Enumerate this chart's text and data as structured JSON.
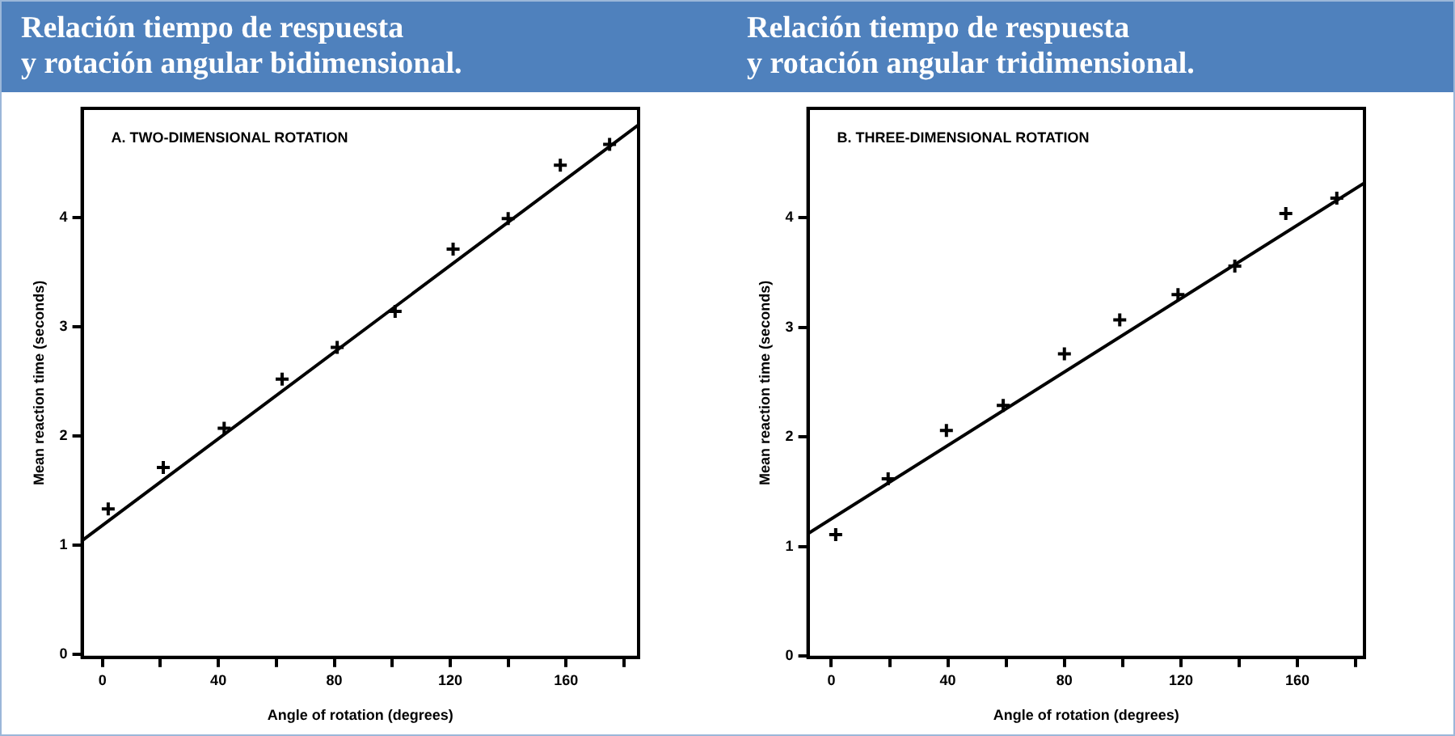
{
  "chart_data": [
    {
      "type": "scatter",
      "title": "Relación tiempo de respuesta\ny rotación angular bidimensional.",
      "subtitle": "A. TWO-DIMENSIONAL ROTATION",
      "xlabel": "Angle of rotation (degrees)",
      "ylabel": "Mean reaction time (seconds)",
      "xlim": [
        -7,
        185
      ],
      "ylim": [
        -0.03,
        5.0
      ],
      "xticks": [
        0,
        {
          "value": 20,
          "label": null
        },
        40,
        {
          "value": 60,
          "label": null
        },
        80,
        {
          "value": 100,
          "label": null
        },
        120,
        {
          "value": 140,
          "label": null
        },
        160,
        {
          "value": 180,
          "label": null
        }
      ],
      "yticks": [
        0,
        1,
        2,
        3,
        4
      ],
      "grid": false,
      "legend": false,
      "marker": "cross",
      "series": [
        {
          "color": "#000000",
          "x": [
            2,
            21,
            42,
            62,
            81,
            101,
            121,
            140,
            158,
            175
          ],
          "values": [
            1.33,
            1.71,
            2.07,
            2.52,
            2.81,
            3.14,
            3.71,
            3.99,
            4.48,
            4.67
          ]
        },
        {
          "type": "line",
          "marker": "none",
          "color": "#000000",
          "x": [
            -7,
            185
          ],
          "values": [
            1.04,
            4.85
          ]
        }
      ]
    },
    {
      "type": "scatter",
      "title": "Relación tiempo de respuesta\ny rotación angular tridimensional.",
      "subtitle": "B. THREE-DIMENSIONAL ROTATION",
      "xlabel": "Angle of rotation (degrees)",
      "ylabel": "Mean reaction time (seconds)",
      "xlim": [
        -8,
        183
      ],
      "ylim": [
        -0.01,
        5.0
      ],
      "xticks": [
        0,
        {
          "value": 20,
          "label": null
        },
        40,
        {
          "value": 60,
          "label": null
        },
        80,
        {
          "value": 100,
          "label": null
        },
        120,
        {
          "value": 140,
          "label": null
        },
        160,
        {
          "value": 180,
          "label": null
        }
      ],
      "yticks": [
        0,
        1,
        2,
        3,
        4
      ],
      "grid": false,
      "legend": false,
      "marker": "cross",
      "series": [
        {
          "color": "#000000",
          "x": [
            1.5,
            19.5,
            39.5,
            59,
            80,
            99,
            119,
            138.5,
            156,
            173.5
          ],
          "values": [
            1.11,
            1.62,
            2.06,
            2.29,
            2.76,
            3.07,
            3.3,
            3.56,
            4.04,
            4.18
          ]
        },
        {
          "type": "line",
          "marker": "none",
          "color": "#000000",
          "x": [
            -8,
            183
          ],
          "values": [
            1.12,
            4.32
          ]
        }
      ]
    }
  ]
}
